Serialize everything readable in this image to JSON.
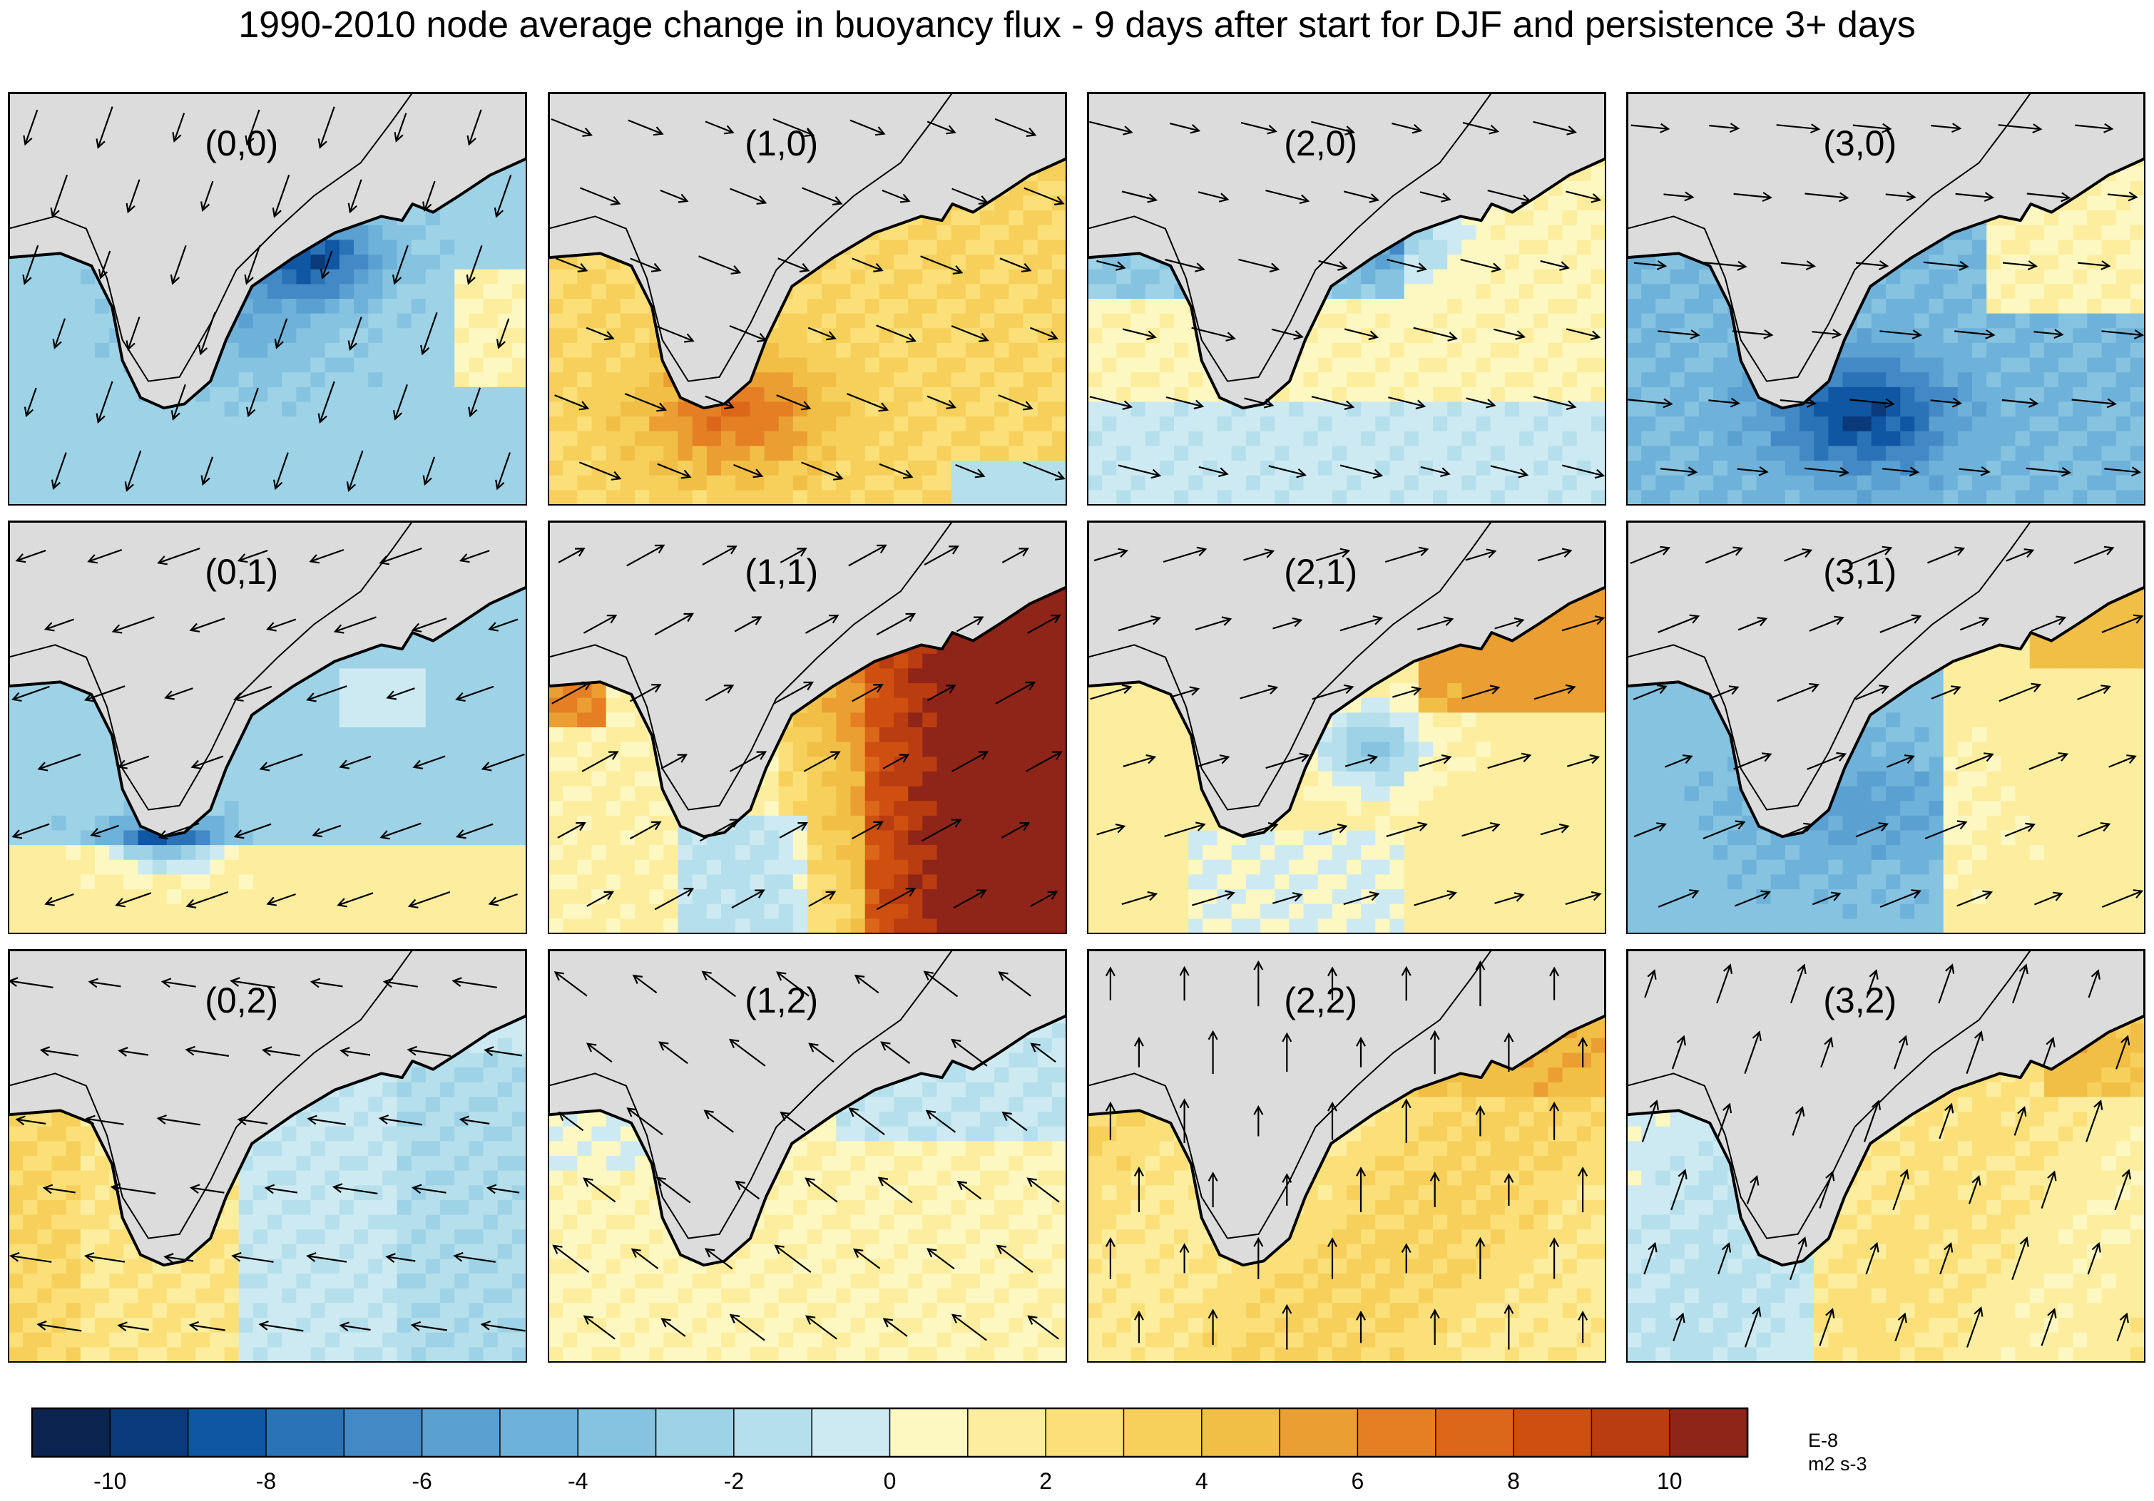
{
  "chart_data": {
    "type": "heatmap",
    "title": "1990-2010 node average change in buoyancy flux - 9 days after start for DJF and persistence 3+ days",
    "grid": {
      "columns": 4,
      "rows": 3
    },
    "panels": [
      {
        "label": "(0,0)",
        "node": [
          0,
          0
        ],
        "pattern": "coastal_negative",
        "strength": 10.5,
        "wind_dir": [
          -0.35,
          1
        ]
      },
      {
        "label": "(1,0)",
        "node": [
          1,
          0
        ],
        "pattern": "west_positive",
        "strength": 7,
        "wind_dir": [
          1,
          0.4
        ]
      },
      {
        "label": "(2,0)",
        "node": [
          2,
          0
        ],
        "pattern": "northwest_negative",
        "strength": 6,
        "wind_dir": [
          1,
          0.25
        ]
      },
      {
        "label": "(3,0)",
        "node": [
          3,
          0
        ],
        "pattern": "central_negative",
        "strength": 9.5,
        "wind_dir": [
          1,
          0.1
        ]
      },
      {
        "label": "(0,1)",
        "node": [
          0,
          1
        ],
        "pattern": "negative_north_positive_south",
        "strength": 9,
        "wind_dir": [
          -1,
          0.35
        ]
      },
      {
        "label": "(1,1)",
        "node": [
          1,
          1
        ],
        "pattern": "strong_positive_east",
        "strength": 11,
        "wind_dir": [
          1,
          -0.55
        ]
      },
      {
        "label": "(2,1)",
        "node": [
          2,
          1
        ],
        "pattern": "mixed",
        "strength": 8,
        "wind_dir": [
          1,
          -0.3
        ]
      },
      {
        "label": "(3,1)",
        "node": [
          3,
          1
        ],
        "pattern": "west_negative_east_positive",
        "strength": 6,
        "wind_dir": [
          1,
          -0.4
        ]
      },
      {
        "label": "(0,2)",
        "node": [
          0,
          2
        ],
        "pattern": "positive_west_negative_east",
        "strength": 3,
        "wind_dir": [
          -1,
          -0.15
        ]
      },
      {
        "label": "(1,2)",
        "node": [
          1,
          2
        ],
        "pattern": "weak_positive",
        "strength": 2,
        "wind_dir": [
          -0.8,
          -0.6
        ]
      },
      {
        "label": "(2,2)",
        "node": [
          2,
          2
        ],
        "pattern": "uniform_positive",
        "strength": 4,
        "wind_dir": [
          0,
          -1
        ]
      },
      {
        "label": "(3,2)",
        "node": [
          3,
          2
        ],
        "pattern": "west_negative_east_positive_weak",
        "strength": 4,
        "wind_dir": [
          0.35,
          -1
        ]
      }
    ],
    "colorbar": {
      "levels": [
        -11,
        -10,
        -9,
        -8,
        -7,
        -6,
        -5,
        -4,
        -3,
        -2,
        -1,
        0,
        1,
        2,
        3,
        4,
        5,
        6,
        7,
        8,
        9,
        10,
        11
      ],
      "tick_labels": [
        "-10",
        "-8",
        "-6",
        "-4",
        "-2",
        "0",
        "2",
        "4",
        "6",
        "8",
        "10"
      ],
      "tick_values": [
        -10,
        -8,
        -6,
        -4,
        -2,
        0,
        2,
        4,
        6,
        8,
        10
      ],
      "colors": [
        "#0b244f",
        "#0a3a7a",
        "#0f57a3",
        "#2a73b6",
        "#4389c6",
        "#5aa0d1",
        "#6eb2da",
        "#85c3e1",
        "#9ed2e6",
        "#b6dfec",
        "#cdeaf3",
        "#fdf7c2",
        "#fdee9f",
        "#fbe07a",
        "#f7d05b",
        "#f2bf46",
        "#eb9f32",
        "#e57f24",
        "#dc671a",
        "#cf4f10",
        "#b93d10",
        "#8f2519"
      ],
      "units_line1": "E-8",
      "units_line2": "m2 s-3"
    },
    "land_color": "#dcdcdc"
  }
}
